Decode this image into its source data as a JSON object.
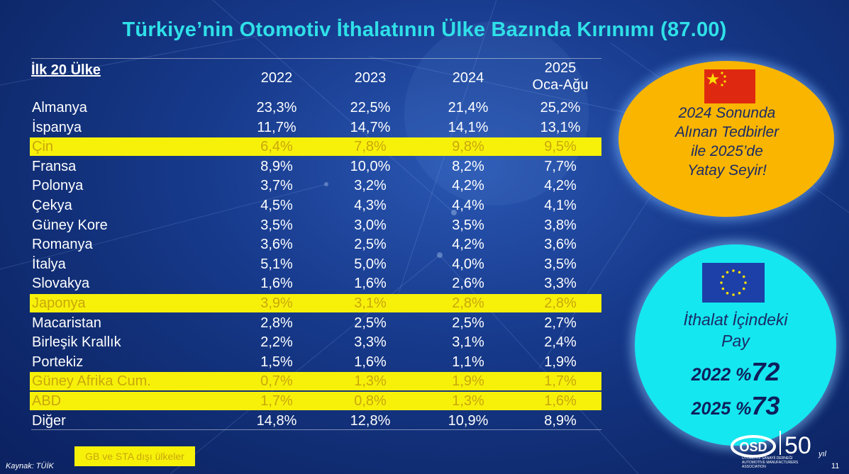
{
  "title": "Türkiye’nin Otomotiv İthalatının Ülke Bazında Kırınımı (87.00)",
  "table": {
    "header_label": "İlk 20 Ülke",
    "year_headers": [
      "2022",
      "2023",
      "2024",
      "2025\nOca-Ağu"
    ],
    "rows": [
      {
        "country": "Almanya",
        "values": [
          "23,3%",
          "22,5%",
          "21,4%",
          "25,2%"
        ],
        "highlight": false
      },
      {
        "country": "İspanya",
        "values": [
          "11,7%",
          "14,7%",
          "14,1%",
          "13,1%"
        ],
        "highlight": false
      },
      {
        "country": "Çin",
        "values": [
          "6,4%",
          "7,8%",
          "9,8%",
          "9,5%"
        ],
        "highlight": true
      },
      {
        "country": "Fransa",
        "values": [
          "8,9%",
          "10,0%",
          "8,2%",
          "7,7%"
        ],
        "highlight": false
      },
      {
        "country": "Polonya",
        "values": [
          "3,7%",
          "3,2%",
          "4,2%",
          "4,2%"
        ],
        "highlight": false
      },
      {
        "country": "Çekya",
        "values": [
          "4,5%",
          "4,3%",
          "4,4%",
          "4,1%"
        ],
        "highlight": false
      },
      {
        "country": "Güney Kore",
        "values": [
          "3,5%",
          "3,0%",
          "3,5%",
          "3,8%"
        ],
        "highlight": false
      },
      {
        "country": "Romanya",
        "values": [
          "3,6%",
          "2,5%",
          "4,2%",
          "3,6%"
        ],
        "highlight": false
      },
      {
        "country": "İtalya",
        "values": [
          "5,1%",
          "5,0%",
          "4,0%",
          "3,5%"
        ],
        "highlight": false
      },
      {
        "country": "Slovakya",
        "values": [
          "1,6%",
          "1,6%",
          "2,6%",
          "3,3%"
        ],
        "highlight": false
      },
      {
        "country": "Japonya",
        "values": [
          "3,9%",
          "3,1%",
          "2,8%",
          "2,8%"
        ],
        "highlight": true
      },
      {
        "country": "Macaristan",
        "values": [
          "2,8%",
          "2,5%",
          "2,5%",
          "2,7%"
        ],
        "highlight": false
      },
      {
        "country": "Birleşik Krallık",
        "values": [
          "2,2%",
          "3,3%",
          "3,1%",
          "2,4%"
        ],
        "highlight": false
      },
      {
        "country": "Portekiz",
        "values": [
          "1,5%",
          "1,6%",
          "1,1%",
          "1,9%"
        ],
        "highlight": false
      },
      {
        "country": "Güney Afrika Cum.",
        "values": [
          "0,7%",
          "1,3%",
          "1,9%",
          "1,7%"
        ],
        "highlight": true
      },
      {
        "country": "ABD",
        "values": [
          "1,7%",
          "0,8%",
          "1,3%",
          "1,6%"
        ],
        "highlight": true
      },
      {
        "country": "Diğer",
        "values": [
          "14,8%",
          "12,8%",
          "10,9%",
          "8,9%"
        ],
        "highlight": false
      }
    ]
  },
  "china_callout": {
    "flag_icon": "china-flag-icon",
    "text_lines": [
      "2024 Sonunda",
      "Alınan Tedbirler",
      "ile 2025’de",
      "Yatay Seyir!"
    ]
  },
  "eu_callout": {
    "flag_icon": "eu-flag-icon",
    "text_lines": [
      "İthalat İçindeki",
      "Pay"
    ],
    "share_2022_prefix": "2022 %",
    "share_2022_value": "72",
    "share_2025_prefix": "2025 %",
    "share_2025_value": "73"
  },
  "legend": {
    "label": "GB ve STA dışı ülkeler"
  },
  "footer": {
    "source": "Kaynak: TÜİK",
    "page_number": "11",
    "logo_text": "OSD",
    "logo_anniversary": "50",
    "logo_anniversary_suffix": "yıl",
    "logo_sub_line1": "OTOMOTİV SANAYİİ DERNEĞİ",
    "logo_sub_line2": "AUTOMOTIVE MANUFACTURERS ASSOCIATION"
  },
  "colors": {
    "title": "#2fe0e8",
    "highlight": "#f7f10a",
    "highlight_text": "#c9a70a",
    "orange_callout": "#f9b500",
    "cyan_callout": "#14e7ef"
  }
}
